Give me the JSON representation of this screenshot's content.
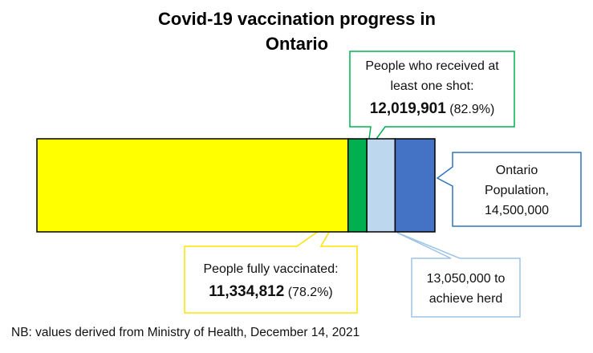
{
  "chart_data": {
    "type": "bar",
    "orientation": "horizontal-stacked",
    "title_line1": "Covid-19 vaccination progress in",
    "title_line2": "Ontario",
    "segments": [
      {
        "id": "fully",
        "value": 11334812,
        "color": "#ffff00"
      },
      {
        "id": "one_shot",
        "value": 12019901,
        "color": "#00b050"
      },
      {
        "id": "herd",
        "value": 13050000,
        "color": "#bdd7ee"
      },
      {
        "id": "population",
        "value": 14500000,
        "color": "#4472c4"
      }
    ],
    "annotations": {
      "one_shot": {
        "line1": "People who received at",
        "line2": "least one shot:",
        "value": "12,019,901",
        "pct": "(82.9%)",
        "border": "#00b050"
      },
      "population": {
        "line1": "Ontario",
        "line2": "Population,",
        "line3": "14,500,000",
        "border": "#2e75b6"
      },
      "fully": {
        "line1": "People fully vaccinated:",
        "value": "11,334,812",
        "pct": "(78.2%)",
        "border": "#ffe400"
      },
      "herd": {
        "line1": "13,050,000 to",
        "line2": "achieve herd",
        "border": "#9dc3e6"
      }
    },
    "footnote": "NB: values derived from Ministry of Health, December 14, 2021"
  }
}
